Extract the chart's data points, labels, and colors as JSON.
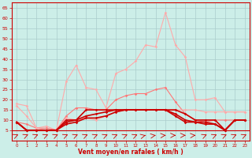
{
  "x": [
    0,
    1,
    2,
    3,
    4,
    5,
    6,
    7,
    8,
    9,
    10,
    11,
    12,
    13,
    14,
    15,
    16,
    17,
    18,
    19,
    20,
    21,
    22,
    23
  ],
  "series": [
    {
      "color": "#ffaaaa",
      "linewidth": 0.8,
      "marker": "D",
      "markersize": 1.8,
      "values": [
        18,
        17,
        6,
        7,
        5,
        29,
        37,
        26,
        25,
        16,
        33,
        35,
        39,
        47,
        46,
        63,
        47,
        41,
        20,
        20,
        21,
        14,
        14,
        14
      ]
    },
    {
      "color": "#ff7777",
      "linewidth": 0.8,
      "marker": "D",
      "markersize": 1.8,
      "values": [
        9,
        8,
        6,
        6,
        5,
        12,
        16,
        16,
        15,
        15,
        20,
        22,
        23,
        23,
        25,
        26,
        19,
        13,
        10,
        9,
        10,
        10,
        10,
        10
      ]
    },
    {
      "color": "#ffaaaa",
      "linewidth": 0.8,
      "marker": "D",
      "markersize": 1.8,
      "values": [
        17,
        12,
        6,
        5,
        5,
        11,
        10,
        11,
        10,
        12,
        14,
        15,
        15,
        15,
        15,
        15,
        15,
        15,
        15,
        14,
        14,
        14,
        14,
        14
      ]
    },
    {
      "color": "#cc0000",
      "linewidth": 1.2,
      "marker": "D",
      "markersize": 1.8,
      "values": [
        9,
        5,
        5,
        5,
        5,
        10,
        10,
        15,
        15,
        15,
        15,
        15,
        15,
        15,
        15,
        15,
        15,
        13,
        10,
        10,
        10,
        5,
        10,
        10
      ]
    },
    {
      "color": "#cc0000",
      "linewidth": 1.2,
      "marker": "D",
      "markersize": 1.8,
      "values": [
        9,
        5,
        5,
        5,
        5,
        9,
        10,
        12,
        13,
        14,
        15,
        15,
        15,
        15,
        15,
        15,
        13,
        10,
        9,
        9,
        8,
        5,
        10,
        10
      ]
    },
    {
      "color": "#cc0000",
      "linewidth": 1.2,
      "marker": "D",
      "markersize": 1.8,
      "values": [
        9,
        5,
        5,
        5,
        5,
        8,
        9,
        11,
        11,
        12,
        14,
        15,
        15,
        15,
        15,
        15,
        12,
        9,
        9,
        8,
        8,
        5,
        10,
        10
      ]
    }
  ],
  "arrow_angles_deg": [
    45,
    45,
    45,
    45,
    45,
    45,
    45,
    45,
    45,
    45,
    45,
    45,
    45,
    30,
    20,
    10,
    5,
    5,
    10,
    45,
    45,
    45,
    45,
    45
  ],
  "xlabel": "Vent moyen/en rafales ( km/h )",
  "ylim": [
    0,
    68
  ],
  "yticks": [
    5,
    10,
    15,
    20,
    25,
    30,
    35,
    40,
    45,
    50,
    55,
    60,
    65
  ],
  "xticks": [
    0,
    1,
    2,
    3,
    4,
    5,
    6,
    7,
    8,
    9,
    10,
    11,
    12,
    13,
    14,
    15,
    16,
    17,
    18,
    19,
    20,
    21,
    22,
    23
  ],
  "bg_color": "#cceee8",
  "grid_color": "#aacccc",
  "axis_color": "#cc0000",
  "text_color": "#cc0000",
  "arrow_color": "#cc0000"
}
